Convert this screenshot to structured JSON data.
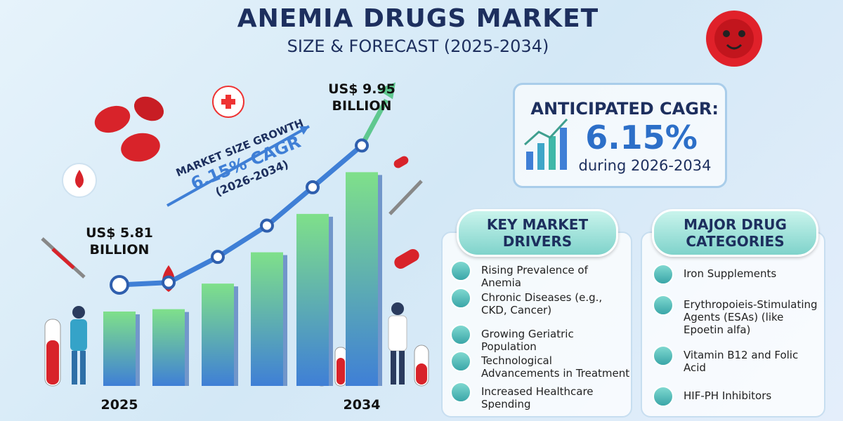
{
  "header": {
    "title": "ANEMIA DRUGS MARKET",
    "subtitle": "SIZE & FORECAST (2025-2034)"
  },
  "chart_data": {
    "type": "bar",
    "categories": [
      "2025",
      null,
      null,
      null,
      null,
      "2034"
    ],
    "values": [
      5.81,
      5.88,
      6.64,
      7.57,
      8.71,
      9.95
    ],
    "value_labels": [
      "US$ 5.81 BILLION",
      null,
      null,
      null,
      null,
      "US$ 9.95 BILLION"
    ],
    "ylim": [
      3.6,
      10.5
    ],
    "colors": [
      "#7fe08a",
      "#3f7fd6"
    ]
  },
  "growth": {
    "label": "MARKET SIZE GROWTH",
    "cagr": "6.15% CAGR",
    "period": "(2026-2034)"
  },
  "cagr_box": {
    "title": "ANTICIPATED CAGR:",
    "value": "6.15%",
    "period": "during 2026-2034"
  },
  "drivers": {
    "title": "KEY MARKET DRIVERS",
    "items": [
      "Rising Prevalence of Anemia",
      "Chronic Diseases (e.g., CKD, Cancer)",
      "Growing Geriatric Population",
      "Technological Advancements in Treatment",
      "Increased Healthcare Spending"
    ]
  },
  "categories": {
    "title": "MAJOR DRUG CATEGORIES",
    "items": [
      "Iron Supplements",
      "Erythropoieis-Stimulating Agents (ESAs) (like Epoetin alfa)",
      "Vitamin B12 and Folic Acid",
      "HIF-PH Inhibitors"
    ]
  }
}
